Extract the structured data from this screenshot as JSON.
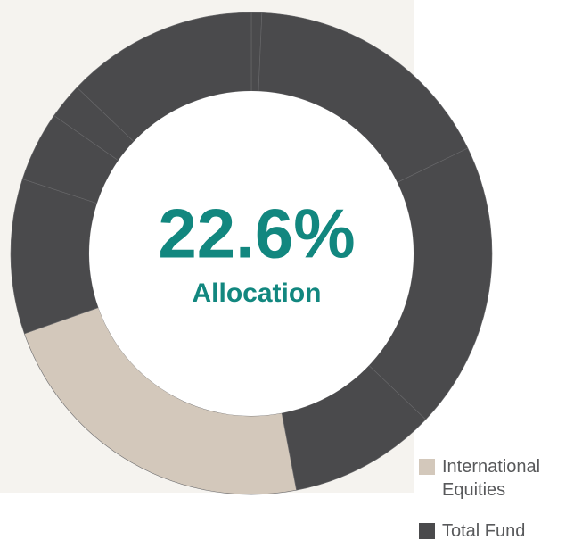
{
  "chart_data": {
    "type": "donut",
    "center_label": "22.6%",
    "center_caption": "Allocation",
    "categories": [
      null,
      null,
      null,
      null,
      null,
      null,
      null,
      null,
      null
    ],
    "values": [
      0.7,
      17.1,
      19.3,
      9.9,
      22.6,
      10.4,
      4.7,
      2.4,
      12.9
    ],
    "colors": [
      "#4a4a4c",
      "#4a4a4c",
      "#4a4a4c",
      "#4a4a4c",
      "#d3c8bb",
      "#4a4a4c",
      "#4a4a4c",
      "#4a4a4c",
      "#4a4a4c"
    ],
    "legend": [
      {
        "name": "International Equities",
        "color": "#d3c8bb"
      },
      {
        "name": "Total Fund",
        "color": "#4a4a4c"
      }
    ]
  }
}
